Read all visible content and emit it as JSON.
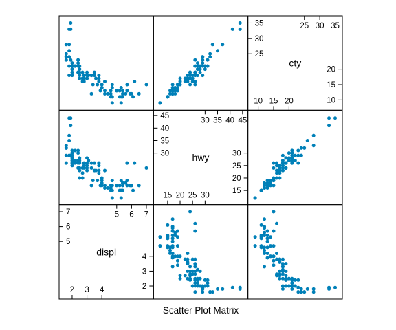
{
  "chart_data": {
    "type": "scatter",
    "title": "",
    "xlabel": "Scatter Plot Matrix",
    "ylabel": "",
    "grid": false,
    "point_color": "#0080b8",
    "variables": [
      {
        "name": "displ",
        "range": [
          1.4,
          7.2
        ],
        "ticks_a": [
          2,
          3,
          4
        ],
        "ticks_b": [
          5,
          6,
          7
        ],
        "ticks_c": [
          2,
          3,
          4
        ],
        "ticks_d": [
          5,
          6,
          7
        ]
      },
      {
        "name": "hwy",
        "range": [
          11,
          45.5
        ],
        "ticks_a": [
          15,
          20,
          25,
          30
        ],
        "ticks_b": [
          30,
          35,
          40,
          45
        ],
        "ticks_c": [
          15,
          20,
          25,
          30
        ],
        "ticks_d": [
          30,
          35,
          40,
          45
        ]
      },
      {
        "name": "cty",
        "range": [
          8,
          36
        ],
        "ticks_a": [
          10,
          15,
          20
        ],
        "ticks_b": [
          25,
          30,
          35
        ],
        "ticks_c": [
          10,
          15,
          20
        ],
        "ticks_d": [
          25,
          30,
          35
        ]
      }
    ],
    "series": [
      {
        "name": "",
        "columns": [
          "displ",
          "hwy",
          "cty"
        ],
        "points": [
          [
            1.6,
            33,
            28
          ],
          [
            1.6,
            32,
            24
          ],
          [
            1.6,
            29,
            24
          ],
          [
            1.6,
            32,
            25
          ],
          [
            1.6,
            26,
            23
          ],
          [
            1.8,
            29,
            18
          ],
          [
            1.8,
            29,
            21
          ],
          [
            1.8,
            37,
            28
          ],
          [
            1.8,
            35,
            26
          ],
          [
            1.8,
            44,
            33
          ],
          [
            1.8,
            29,
            24
          ],
          [
            1.9,
            44,
            35
          ],
          [
            1.9,
            41,
            33
          ],
          [
            1.9,
            29,
            23
          ],
          [
            2.0,
            31,
            21
          ],
          [
            2.0,
            30,
            20
          ],
          [
            2.0,
            26,
            19
          ],
          [
            2.0,
            28,
            21
          ],
          [
            2.0,
            27,
            20
          ],
          [
            2.0,
            29,
            22
          ],
          [
            2.0,
            30,
            21
          ],
          [
            2.0,
            25,
            18
          ],
          [
            2.2,
            26,
            21
          ],
          [
            2.2,
            31,
            21
          ],
          [
            2.2,
            27,
            21
          ],
          [
            2.4,
            31,
            23
          ],
          [
            2.4,
            30,
            21
          ],
          [
            2.4,
            26,
            19
          ],
          [
            2.4,
            24,
            19
          ],
          [
            2.4,
            27,
            22
          ],
          [
            2.5,
            28,
            20
          ],
          [
            2.5,
            24,
            19
          ],
          [
            2.5,
            20,
            17
          ],
          [
            2.5,
            26,
            21
          ],
          [
            2.5,
            27,
            20
          ],
          [
            2.5,
            23,
            18
          ],
          [
            2.7,
            24,
            19
          ],
          [
            2.7,
            22,
            17
          ],
          [
            2.7,
            20,
            16
          ],
          [
            2.8,
            26,
            18
          ],
          [
            2.8,
            24,
            17
          ],
          [
            2.8,
            25,
            16
          ],
          [
            3.0,
            26,
            18
          ],
          [
            3.0,
            28,
            19
          ],
          [
            3.0,
            23,
            17
          ],
          [
            3.0,
            25,
            18
          ],
          [
            3.0,
            24,
            17
          ],
          [
            3.1,
            27,
            18
          ],
          [
            3.3,
            24,
            18
          ],
          [
            3.3,
            26,
            18
          ],
          [
            3.3,
            17,
            12
          ],
          [
            3.4,
            19,
            15
          ],
          [
            3.5,
            26,
            19
          ],
          [
            3.5,
            23,
            18
          ],
          [
            3.6,
            23,
            17
          ],
          [
            3.7,
            19,
            15
          ],
          [
            3.8,
            26,
            18
          ],
          [
            3.8,
            23,
            17
          ],
          [
            3.8,
            25,
            17
          ],
          [
            3.8,
            22,
            16
          ],
          [
            3.9,
            17,
            13
          ],
          [
            4.0,
            18,
            14
          ],
          [
            4.0,
            17,
            15
          ],
          [
            4.0,
            20,
            15
          ],
          [
            4.0,
            19,
            14
          ],
          [
            4.2,
            23,
            16
          ],
          [
            4.2,
            17,
            12
          ],
          [
            4.2,
            16,
            13
          ],
          [
            4.4,
            16,
            12
          ],
          [
            4.6,
            17,
            13
          ],
          [
            4.6,
            16,
            12
          ],
          [
            4.6,
            15,
            11
          ],
          [
            4.7,
            17,
            14
          ],
          [
            4.7,
            19,
            15
          ],
          [
            4.7,
            15,
            11
          ],
          [
            4.7,
            12,
            9
          ],
          [
            5.0,
            17,
            13
          ],
          [
            5.2,
            15,
            11
          ],
          [
            5.2,
            17,
            13
          ],
          [
            5.3,
            19,
            14
          ],
          [
            5.3,
            15,
            11
          ],
          [
            5.3,
            12,
            9
          ],
          [
            5.4,
            17,
            12
          ],
          [
            5.4,
            18,
            13
          ],
          [
            5.4,
            15,
            11
          ],
          [
            5.6,
            18,
            12
          ],
          [
            5.7,
            17,
            13
          ],
          [
            5.7,
            26,
            15
          ],
          [
            5.7,
            19,
            13
          ],
          [
            5.9,
            17,
            12
          ],
          [
            6.0,
            17,
            12
          ],
          [
            6.1,
            15,
            11
          ],
          [
            6.2,
            26,
            16
          ],
          [
            6.5,
            17,
            12
          ],
          [
            7.0,
            24,
            15
          ]
        ]
      }
    ]
  }
}
